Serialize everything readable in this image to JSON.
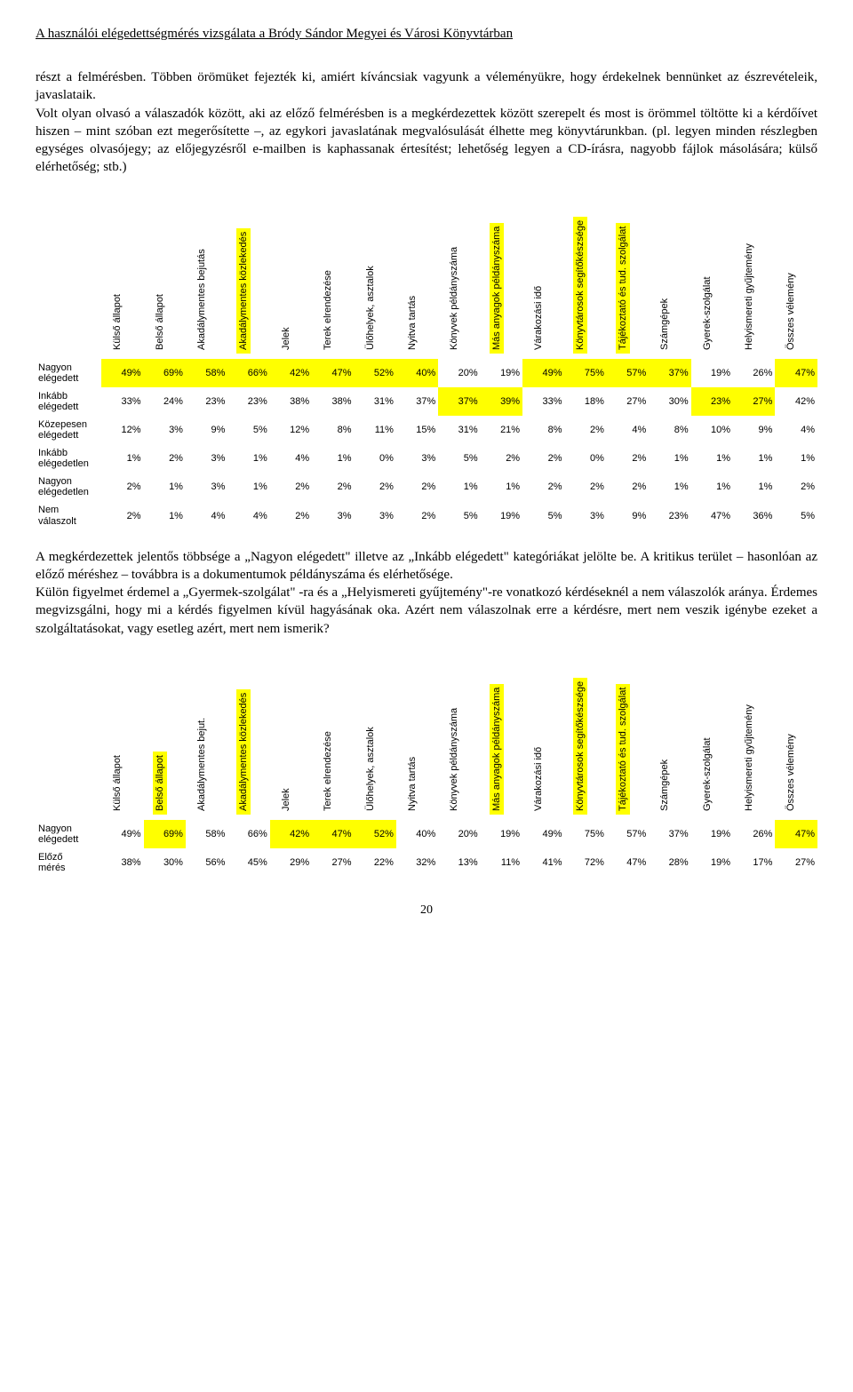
{
  "header": "A használói elégedettségmérés vizsgálata a Bródy Sándor Megyei és Városi Könyvtárban",
  "para1": "részt a felmérésben. Többen örömüket fejezték ki, amiért kíváncsiak vagyunk a véleményükre, hogy érdekelnek bennünket az észrevételeik, javaslataik.",
  "para2": "Volt olyan olvasó a válaszadók között, aki az előző felmérésben is a megkérdezettek között szerepelt és most is örömmel töltötte ki a kérdőívet hiszen – mint szóban ezt megerősítette –, az egykori javaslatának megvalósulását élhette meg könyvtárunkban. (pl. legyen minden részlegben egységes olvasójegy; az előjegyzésről e-mailben is kaphassanak értesítést; lehetőség legyen a CD-írásra, nagyobb fájlok másolására; külső elérhetőség; stb.)",
  "para3": "A megkérdezettek jelentős többsége a „Nagyon elégedett\" illetve az „Inkább elégedett\" kategóriákat jelölte be. A kritikus terület – hasonlóan az előző méréshez – továbbra is a dokumentumok példányszáma és elérhetősége.",
  "para4": "Külön figyelmet érdemel a „Gyermek-szolgálat\" -ra és a „Helyismereti gyűjtemény\"-re vonatkozó kérdéseknél a nem válaszolók aránya. Érdemes megvizsgálni, hogy mi a kérdés figyelmen kívül hagyásának oka. Azért nem válaszolnak erre a kérdésre, mert nem veszik igénybe ezeket a szolgáltatásokat, vagy esetleg azért, mert nem ismerik?",
  "table1": {
    "columns": [
      "Külső állapot",
      "Belső állapot",
      "Akadálymentes bejutás",
      "Akadálymentes közlekedés",
      "Jelek",
      "Terek elrendezése",
      "Ülőhelyek, asztalok",
      "Nyitva tartás",
      "Könyvek példányszáma",
      "Más anyagok példányszáma",
      "Várakozási idő",
      "Könyvtárosok segítőkészsége",
      "Tájékoztató és tud. szolgálat",
      "Számgépek",
      "Gyerek-szolgálat",
      "Helyismereti gyűjtemény",
      "Összes vélemény"
    ],
    "col_hl": [
      false,
      false,
      false,
      true,
      false,
      false,
      false,
      false,
      false,
      true,
      false,
      true,
      true,
      false,
      false,
      false,
      false
    ],
    "rows": [
      {
        "label": "Nagyon elégedett",
        "vals": [
          "49%",
          "69%",
          "58%",
          "66%",
          "42%",
          "47%",
          "52%",
          "40%",
          "20%",
          "19%",
          "49%",
          "75%",
          "57%",
          "37%",
          "19%",
          "26%",
          "47%"
        ],
        "hl": [
          true,
          true,
          true,
          true,
          true,
          true,
          true,
          true,
          false,
          false,
          true,
          true,
          true,
          true,
          false,
          false,
          true
        ]
      },
      {
        "label": "Inkább elégedett",
        "vals": [
          "33%",
          "24%",
          "23%",
          "23%",
          "38%",
          "38%",
          "31%",
          "37%",
          "37%",
          "39%",
          "33%",
          "18%",
          "27%",
          "30%",
          "23%",
          "27%",
          "42%"
        ],
        "hl": [
          false,
          false,
          false,
          false,
          false,
          false,
          false,
          false,
          true,
          true,
          false,
          false,
          false,
          false,
          true,
          true,
          false
        ]
      },
      {
        "label": "Közepesen elégedett",
        "vals": [
          "12%",
          "3%",
          "9%",
          "5%",
          "12%",
          "8%",
          "11%",
          "15%",
          "31%",
          "21%",
          "8%",
          "2%",
          "4%",
          "8%",
          "10%",
          "9%",
          "4%"
        ],
        "hl": [
          false,
          false,
          false,
          false,
          false,
          false,
          false,
          false,
          false,
          false,
          false,
          false,
          false,
          false,
          false,
          false,
          false
        ]
      },
      {
        "label": "Inkább elégedetlen",
        "vals": [
          "1%",
          "2%",
          "3%",
          "1%",
          "4%",
          "1%",
          "0%",
          "3%",
          "5%",
          "2%",
          "2%",
          "0%",
          "2%",
          "1%",
          "1%",
          "1%",
          "1%"
        ],
        "hl": [
          false,
          false,
          false,
          false,
          false,
          false,
          false,
          false,
          false,
          false,
          false,
          false,
          false,
          false,
          false,
          false,
          false
        ]
      },
      {
        "label": "Nagyon elégedetlen",
        "vals": [
          "2%",
          "1%",
          "3%",
          "1%",
          "2%",
          "2%",
          "2%",
          "2%",
          "1%",
          "1%",
          "2%",
          "2%",
          "2%",
          "1%",
          "1%",
          "1%",
          "2%"
        ],
        "hl": [
          false,
          false,
          false,
          false,
          false,
          false,
          false,
          false,
          false,
          false,
          false,
          false,
          false,
          false,
          false,
          false,
          false
        ]
      },
      {
        "label": "Nem válaszolt",
        "vals": [
          "2%",
          "1%",
          "4%",
          "4%",
          "2%",
          "3%",
          "3%",
          "2%",
          "5%",
          "19%",
          "5%",
          "3%",
          "9%",
          "23%",
          "47%",
          "36%",
          "5%"
        ],
        "hl": [
          false,
          false,
          false,
          false,
          false,
          false,
          false,
          false,
          false,
          false,
          false,
          false,
          false,
          false,
          false,
          false,
          false
        ]
      }
    ]
  },
  "table2": {
    "columns": [
      "Külső állapot",
      "Belső állapot",
      "Akadálymentes bejut.",
      "Akadálymentes közlekedés",
      "Jelek",
      "Terek elrendezése",
      "Ülőhelyek, asztalok",
      "Nyitva tartás",
      "Könyvek példányszáma",
      "Más anyagok példányszáma",
      "Várakozási idő",
      "Könyvtárosok segítőkészsége",
      "Tájékoztató és tud. szolgálat",
      "Számgépek",
      "Gyerek-szolgálat",
      "Helyismereti gyűjtemény",
      "Összes vélemény"
    ],
    "col_hl": [
      false,
      true,
      false,
      true,
      false,
      false,
      false,
      false,
      false,
      true,
      false,
      true,
      true,
      false,
      false,
      false,
      false
    ],
    "rows": [
      {
        "label": "Nagyon elégedett",
        "vals": [
          "49%",
          "69%",
          "58%",
          "66%",
          "42%",
          "47%",
          "52%",
          "40%",
          "20%",
          "19%",
          "49%",
          "75%",
          "57%",
          "37%",
          "19%",
          "26%",
          "47%"
        ],
        "hl": [
          false,
          true,
          false,
          false,
          true,
          true,
          true,
          false,
          false,
          false,
          false,
          false,
          false,
          false,
          false,
          false,
          true
        ]
      },
      {
        "label": "Előző mérés",
        "vals": [
          "38%",
          "30%",
          "56%",
          "45%",
          "29%",
          "27%",
          "22%",
          "32%",
          "13%",
          "11%",
          "41%",
          "72%",
          "47%",
          "28%",
          "19%",
          "17%",
          "27%"
        ],
        "hl": [
          false,
          false,
          false,
          false,
          false,
          false,
          false,
          false,
          false,
          false,
          false,
          false,
          false,
          false,
          false,
          false,
          false
        ]
      }
    ]
  },
  "pagenum": "20",
  "highlight_color": "#ffff00"
}
